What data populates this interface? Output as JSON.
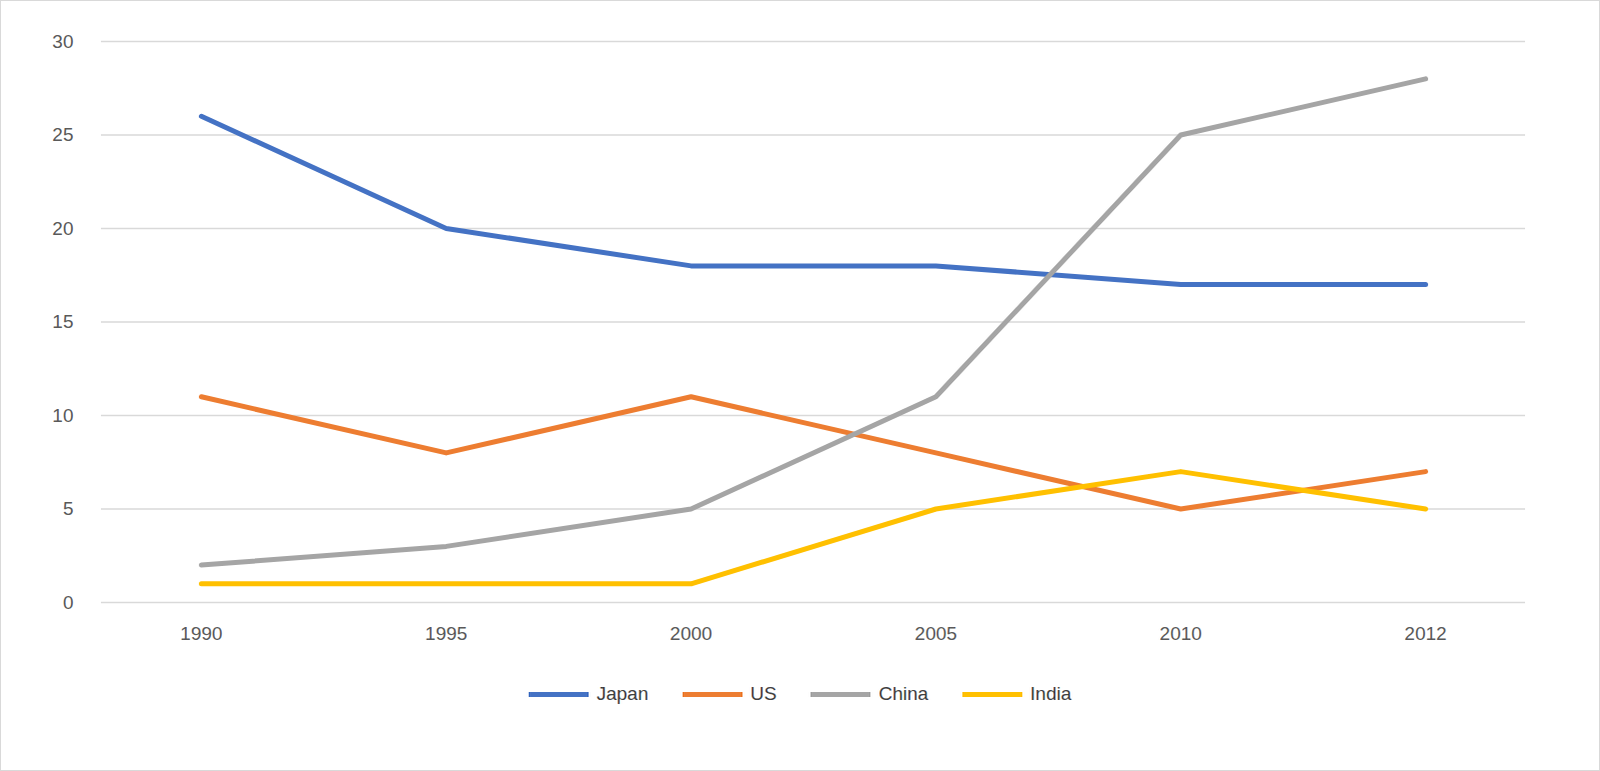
{
  "chart_data": {
    "type": "line",
    "categories": [
      "1990",
      "1995",
      "2000",
      "2005",
      "2010",
      "2012"
    ],
    "series": [
      {
        "name": "Japan",
        "color": "#4472c4",
        "values": [
          26,
          20,
          18,
          18,
          17,
          17
        ]
      },
      {
        "name": "US",
        "color": "#ed7d31",
        "values": [
          11,
          8,
          11,
          8,
          5,
          7
        ]
      },
      {
        "name": "China",
        "color": "#a5a5a5",
        "values": [
          2,
          3,
          5,
          11,
          25,
          28
        ]
      },
      {
        "name": "India",
        "color": "#ffc000",
        "values": [
          1,
          1,
          1,
          5,
          7,
          5
        ]
      }
    ],
    "ylim": [
      0,
      30
    ],
    "yticks": [
      0,
      5,
      10,
      15,
      20,
      25,
      30
    ],
    "grid": true,
    "legend": "bottom"
  }
}
